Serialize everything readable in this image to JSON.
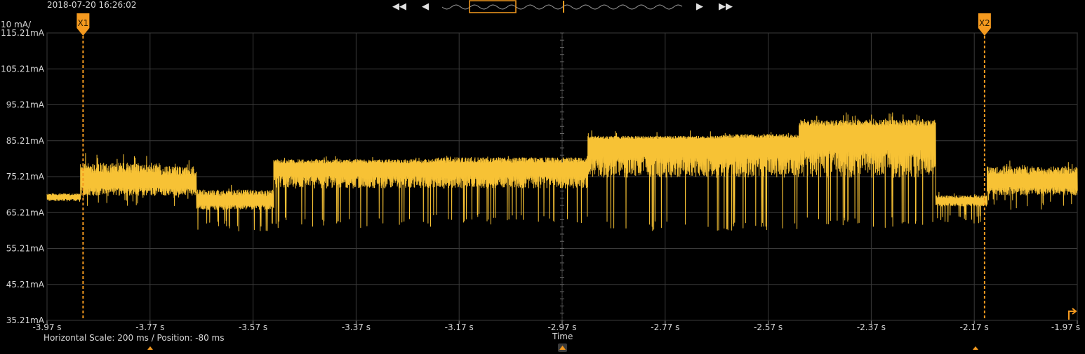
{
  "header": {
    "timestamp": "2018-07-20 16:26:02",
    "scale_unit": "10 mA/"
  },
  "navigation": {
    "rewind_icon": "double-left-triangle",
    "step_back_icon": "left-triangle",
    "step_forward_icon": "right-triangle",
    "fast_forward_icon": "double-right-triangle"
  },
  "footer": {
    "horizontal_info": "Horizontal Scale: 200 ms /  Position: -80 ms",
    "axis_title": "Time"
  },
  "colors": {
    "trace": "#f7c235",
    "cursor": "#f59a1f",
    "grid": "#3a3a3a",
    "background": "#000000"
  },
  "cursors": [
    {
      "label": "X1",
      "x": -3.9
    },
    {
      "label": "X2",
      "x": -2.15
    }
  ],
  "chart_data": {
    "type": "line",
    "title": "",
    "xlabel": "Time",
    "ylabel": "",
    "xlim": [
      -3.97,
      -1.97
    ],
    "ylim": [
      35.21,
      115.21
    ],
    "x_ticks": [
      {
        "value": -3.97,
        "label": "-3.97 s"
      },
      {
        "value": -3.77,
        "label": "-3.77 s"
      },
      {
        "value": -3.57,
        "label": "-3.57 s"
      },
      {
        "value": -3.37,
        "label": "-3.37 s"
      },
      {
        "value": -3.17,
        "label": "-3.17 s"
      },
      {
        "value": -2.97,
        "label": "-2.97 s"
      },
      {
        "value": -2.77,
        "label": "-2.77 s"
      },
      {
        "value": -2.57,
        "label": "-2.57 s"
      },
      {
        "value": -2.37,
        "label": "-2.37 s"
      },
      {
        "value": -2.17,
        "label": "-2.17 s"
      },
      {
        "value": -1.97,
        "label": "-1.97 s"
      }
    ],
    "y_ticks": [
      {
        "value": 115.21,
        "label": "115.21mA"
      },
      {
        "value": 105.21,
        "label": "105.21mA"
      },
      {
        "value": 95.21,
        "label": "95.21mA"
      },
      {
        "value": 85.21,
        "label": "85.21mA"
      },
      {
        "value": 75.21,
        "label": "75.21mA"
      },
      {
        "value": 65.21,
        "label": "65.21mA"
      },
      {
        "value": 55.21,
        "label": "55.21mA"
      },
      {
        "value": 45.21,
        "label": "45.21mA"
      },
      {
        "value": 35.21,
        "label": "35.21mA"
      }
    ],
    "series": [
      {
        "segments": [
          {
            "x0": -3.97,
            "x1": -3.905,
            "center": 69.5,
            "low": 68.5,
            "high": 70.5,
            "spike_low": 68,
            "spike_high": 71
          },
          {
            "x0": -3.905,
            "x1": -3.75,
            "center": 74,
            "low": 70,
            "high": 79,
            "spike_low": 67,
            "spike_high": 82
          },
          {
            "x0": -3.75,
            "x1": -3.68,
            "center": 73.5,
            "low": 70,
            "high": 78,
            "spike_low": 67,
            "spike_high": 80
          },
          {
            "x0": -3.68,
            "x1": -3.53,
            "center": 68.5,
            "low": 66,
            "high": 71.5,
            "spike_low": 60,
            "spike_high": 73
          },
          {
            "x0": -3.53,
            "x1": -3.22,
            "center": 78,
            "low": 72,
            "high": 80,
            "spike_low": 61,
            "spike_high": 81
          },
          {
            "x0": -3.22,
            "x1": -2.92,
            "center": 78,
            "low": 72,
            "high": 80.5,
            "spike_low": 62,
            "spike_high": 81
          },
          {
            "x0": -2.92,
            "x1": -2.66,
            "center": 85,
            "low": 75,
            "high": 86.5,
            "spike_low": 60,
            "spike_high": 88
          },
          {
            "x0": -2.66,
            "x1": -2.51,
            "center": 85,
            "low": 75,
            "high": 87,
            "spike_low": 60,
            "spike_high": 88
          },
          {
            "x0": -2.51,
            "x1": -2.245,
            "center": 88,
            "low": 75,
            "high": 91,
            "spike_low": 61,
            "spike_high": 93
          },
          {
            "x0": -2.245,
            "x1": -2.145,
            "center": 68.5,
            "low": 67,
            "high": 70,
            "spike_low": 62,
            "spike_high": 71
          },
          {
            "x0": -2.145,
            "x1": -1.97,
            "center": 74,
            "low": 70,
            "high": 78,
            "spike_low": 66,
            "spike_high": 80
          }
        ]
      }
    ]
  }
}
